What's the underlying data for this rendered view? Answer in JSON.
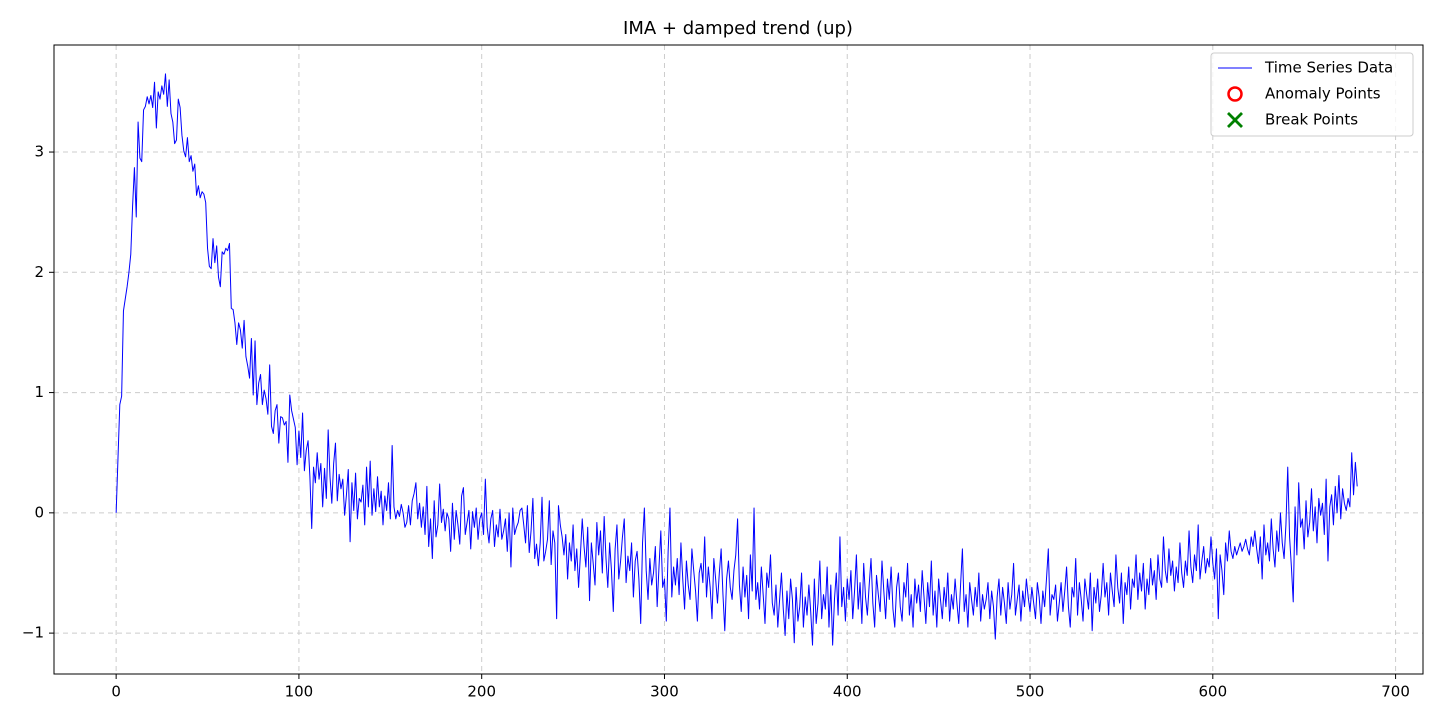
{
  "chart_data": {
    "type": "line",
    "title": "IMA + damped trend (up)",
    "xlim": [
      -34,
      715
    ],
    "xticks": [
      0,
      100,
      200,
      300,
      400,
      500,
      600,
      700
    ],
    "ylim": [
      -1.34,
      3.89
    ],
    "yticks": [
      {
        "value": -1,
        "label": "−1"
      },
      0,
      1,
      2,
      3
    ],
    "grid": true,
    "legend": "upper right",
    "series": [
      {
        "name": "Time Series Data",
        "color": "#0000ff",
        "values": [
          0,
          0.45,
          0.9,
          0.97,
          1.68,
          1.78,
          1.88,
          2.0,
          2.15,
          2.55,
          2.87,
          2.46,
          3.25,
          2.95,
          2.92,
          3.35,
          3.38,
          3.46,
          3.4,
          3.47,
          3.37,
          3.58,
          3.2,
          3.5,
          3.44,
          3.55,
          3.48,
          3.65,
          3.38,
          3.6,
          3.32,
          3.25,
          3.07,
          3.1,
          3.44,
          3.37,
          3.14,
          3.01,
          2.96,
          3.12,
          2.92,
          2.97,
          2.84,
          2.9,
          2.64,
          2.72,
          2.62,
          2.67,
          2.65,
          2.58,
          2.2,
          2.05,
          2.03,
          2.28,
          2.08,
          2.22,
          1.96,
          1.88,
          2.17,
          2.15,
          2.2,
          2.18,
          2.24,
          1.7,
          1.69,
          1.58,
          1.4,
          1.58,
          1.52,
          1.37,
          1.6,
          1.3,
          1.22,
          1.12,
          1.45,
          0.98,
          1.43,
          0.9,
          1.08,
          1.15,
          0.9,
          1.02,
          0.95,
          0.82,
          1.23,
          0.72,
          0.66,
          0.85,
          0.9,
          0.58,
          0.8,
          0.79,
          0.73,
          0.76,
          0.42,
          0.98,
          0.85,
          0.78,
          0.71,
          0.4,
          0.68,
          0.46,
          0.83,
          0.35,
          0.52,
          0.6,
          0.3,
          -0.13,
          0.38,
          0.25,
          0.5,
          0.28,
          0.41,
          0.05,
          0.37,
          0.12,
          0.69,
          0.3,
          0.08,
          0.41,
          0.58,
          0.1,
          0.32,
          0.2,
          0.28,
          -0.02,
          0.15,
          0.36,
          -0.24,
          0.25,
          0.02,
          0.33,
          -0.05,
          0.12,
          0.09,
          0.23,
          -0.1,
          0.38,
          0.05,
          0.43,
          -0.02,
          0.2,
          0.01,
          0.3,
          0.05,
          0.18,
          -0.1,
          0.14,
          0.02,
          0.25,
          -0.05,
          0.56,
          0.05,
          -0.05,
          0.02,
          -0.03,
          0.07,
          0,
          -0.12,
          -0.08,
          0.06,
          -0.1,
          0.1,
          0.16,
          0.25,
          -0.05,
          0.08,
          -0.12,
          0.05,
          -0.18,
          0.22,
          -0.28,
          -0.05,
          -0.38,
          0.1,
          -0.2,
          -0.1,
          0.24,
          -0.08,
          0.03,
          -0.15,
          0,
          -0.05,
          -0.32,
          0.08,
          -0.22,
          0.02,
          -0.1,
          -0.26,
          0.14,
          0.21,
          -0.18,
          -0.08,
          0.02,
          -0.3,
          0.01,
          -0.12,
          0.04,
          -0.22,
          -0.05,
          0,
          -0.18,
          0.28,
          -0.12,
          -0.25,
          -0.05,
          0.02,
          -0.28,
          -0.1,
          -0.2,
          0.03,
          -0.22,
          -0.15,
          -0.05,
          -0.32,
          0,
          -0.45,
          0.04,
          -0.18,
          -0.12,
          -0.08,
          0.02,
          0.04,
          -0.1,
          -0.25,
          0.06,
          -0.33,
          -0.15,
          0.12,
          -0.38,
          -0.26,
          -0.44,
          -0.25,
          0.13,
          -0.4,
          -0.32,
          -0.22,
          0.1,
          -0.43,
          -0.15,
          -0.25,
          -0.88,
          0.06,
          -0.1,
          -0.2,
          -0.35,
          -0.18,
          -0.55,
          -0.25,
          -0.4,
          -0.1,
          -0.48,
          -0.3,
          -0.62,
          -0.35,
          -0.05,
          -0.28,
          -0.45,
          -0.12,
          -0.73,
          -0.25,
          -0.42,
          -0.6,
          -0.08,
          -0.35,
          -0.15,
          -0.5,
          -0.03,
          -0.38,
          -0.62,
          -0.25,
          -0.48,
          -0.82,
          -0.3,
          -0.1,
          -0.55,
          -0.4,
          -0.2,
          -0.05,
          -0.58,
          -0.36,
          -0.48,
          -0.25,
          -0.7,
          -0.4,
          -0.32,
          -0.55,
          -0.92,
          -0.25,
          0.04,
          -0.48,
          -0.72,
          -0.38,
          -0.6,
          -0.5,
          -0.28,
          -0.78,
          -0.45,
          -0.15,
          -0.62,
          -0.55,
          -0.9,
          -0.32,
          0.04,
          -0.7,
          -0.45,
          -0.6,
          -0.38,
          -0.68,
          -0.25,
          -0.55,
          -0.8,
          -0.4,
          -0.6,
          -0.72,
          -0.3,
          -0.48,
          -0.65,
          -0.9,
          -0.5,
          -0.42,
          -0.58,
          -0.2,
          -0.7,
          -0.45,
          -0.62,
          -0.88,
          -0.38,
          -0.55,
          -0.75,
          -0.5,
          -0.3,
          -0.68,
          -0.98,
          -0.55,
          -0.4,
          -0.62,
          -0.72,
          -0.48,
          -0.35,
          -0.05,
          -0.6,
          -0.82,
          -0.45,
          -0.7,
          -0.52,
          -0.88,
          -0.35,
          -0.65,
          0.04,
          -0.72,
          -0.58,
          -0.8,
          -0.45,
          -0.68,
          -0.92,
          -0.5,
          -0.62,
          -0.35,
          -0.75,
          -0.85,
          -0.6,
          -0.95,
          -0.72,
          -0.5,
          -0.8,
          -1.02,
          -0.65,
          -0.88,
          -0.55,
          -0.72,
          -1.08,
          -0.62,
          -0.9,
          -0.78,
          -0.5,
          -0.95,
          -0.7,
          -0.85,
          -0.6,
          -0.82,
          -1.1,
          -0.55,
          -0.92,
          -0.75,
          -0.4,
          -0.88,
          -0.68,
          -0.8,
          -0.45,
          -0.95,
          -0.6,
          -1.1,
          -0.72,
          -0.5,
          -0.85,
          -0.2,
          -0.78,
          -0.62,
          -0.9,
          -0.55,
          -0.72,
          -0.48,
          -0.88,
          -0.65,
          -0.35,
          -0.8,
          -0.58,
          -0.92,
          -0.42,
          -0.7,
          -0.85,
          -0.6,
          -0.38,
          -0.75,
          -0.95,
          -0.52,
          -0.68,
          -0.82,
          -0.4,
          -0.65,
          -0.88,
          -0.55,
          -0.72,
          -0.45,
          -0.8,
          -0.95,
          -0.62,
          -0.5,
          -0.78,
          -0.9,
          -0.58,
          -0.7,
          -0.42,
          -0.85,
          -0.68,
          -0.95,
          -0.55,
          -0.75,
          -0.6,
          -0.82,
          -0.48,
          -0.7,
          -0.92,
          -0.58,
          -0.78,
          -0.4,
          -0.85,
          -0.65,
          -0.95,
          -0.55,
          -0.72,
          -0.88,
          -0.62,
          -0.78,
          -0.5,
          -0.9,
          -0.68,
          -0.8,
          -0.55,
          -0.75,
          -0.92,
          -0.6,
          -0.3,
          -0.82,
          -0.68,
          -0.95,
          -0.58,
          -0.72,
          -0.85,
          -0.62,
          -0.78,
          -0.5,
          -0.9,
          -0.68,
          -0.8,
          -0.72,
          -0.58,
          -0.88,
          -0.65,
          -0.78,
          -1.05,
          -0.7,
          -0.55,
          -0.85,
          -0.62,
          -0.75,
          -0.92,
          -0.58,
          -0.8,
          -0.68,
          -0.42,
          -0.85,
          -0.72,
          -0.6,
          -0.9,
          -0.65,
          -0.78,
          -0.55,
          -0.7,
          -0.82,
          -0.62,
          -0.75,
          -0.88,
          -0.58,
          -0.7,
          -0.92,
          -0.65,
          -0.78,
          -0.55,
          -0.3,
          -0.85,
          -0.68,
          -0.72,
          -0.6,
          -0.9,
          -0.75,
          -0.58,
          -0.82,
          -0.65,
          -0.45,
          -0.78,
          -0.95,
          -0.62,
          -0.7,
          -0.38,
          -0.85,
          -0.58,
          -0.72,
          -0.9,
          -0.55,
          -0.68,
          -0.8,
          -0.5,
          -0.98,
          -0.62,
          -0.75,
          -0.55,
          -0.82,
          -0.68,
          -0.42,
          -0.7,
          -0.58,
          -0.85,
          -0.5,
          -0.65,
          -0.78,
          -0.35,
          -0.62,
          -0.75,
          -0.5,
          -0.92,
          -0.58,
          -0.68,
          -0.45,
          -0.8,
          -0.55,
          -0.62,
          -0.35,
          -0.72,
          -0.5,
          -0.65,
          -0.42,
          -0.8,
          -0.55,
          -0.68,
          -0.38,
          -0.6,
          -0.48,
          -0.72,
          -0.35,
          -0.55,
          -0.62,
          -0.2,
          -0.48,
          -0.58,
          -0.3,
          -0.52,
          -0.4,
          -0.65,
          -0.45,
          -0.58,
          -0.25,
          -0.5,
          -0.62,
          -0.4,
          -0.52,
          -0.15,
          -0.45,
          -0.58,
          -0.35,
          -0.48,
          -0.1,
          -0.55,
          -0.4,
          -0.28,
          -0.5,
          -0.38,
          -0.45,
          -0.2,
          -0.42,
          -0.55,
          -0.3,
          -0.88,
          -0.35,
          -0.48,
          -0.68,
          -0.25,
          -0.4,
          -0.15,
          -0.32,
          -0.38,
          -0.28,
          -0.35,
          -0.3,
          -0.25,
          -0.32,
          -0.28,
          -0.22,
          -0.3,
          -0.35,
          -0.2,
          -0.28,
          -0.15,
          -0.3,
          -0.42,
          -0.2,
          -0.55,
          -0.1,
          -0.35,
          -0.25,
          -0.4,
          -0.05,
          -0.3,
          -0.45,
          -0.15,
          -0.32,
          0,
          -0.25,
          -0.38,
          -0.1,
          0.38,
          -0.2,
          -0.45,
          -0.74,
          0.05,
          -0.35,
          0.25,
          -0.12,
          -0.05,
          -0.3,
          0.1,
          -0.2,
          -0.08,
          0.2,
          -0.15,
          0.05,
          -0.25,
          0.12,
          -0.02,
          0.08,
          -0.18,
          0.28,
          -0.4,
          0.05,
          0.15,
          -0.1,
          0.22,
          0,
          0.31,
          -0.05,
          0.2,
          0.08,
          0.02,
          0.12,
          0.05,
          0.5,
          0.15,
          0.42,
          0.22
        ]
      }
    ],
    "legend_only": [
      {
        "name": "Anomaly Points",
        "color": "#ff0000",
        "marker": "o"
      },
      {
        "name": "Break Points",
        "color": "#008000",
        "marker": "x"
      }
    ]
  }
}
